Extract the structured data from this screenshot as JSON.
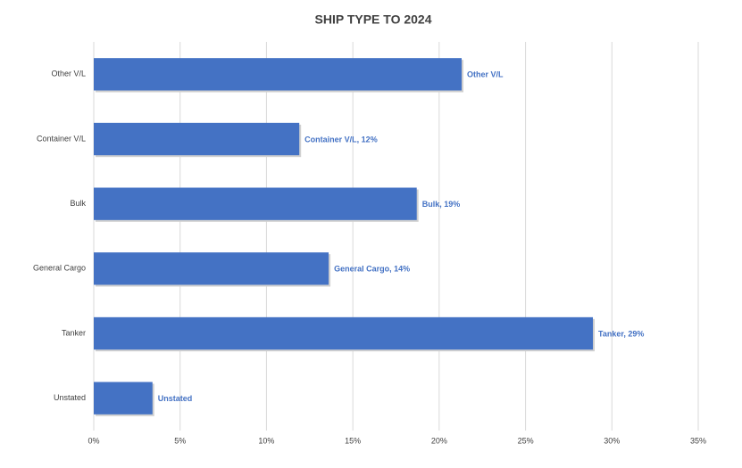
{
  "chart_data": {
    "type": "hbar",
    "title": "SHIP TYPE TO 2024",
    "categories": [
      "Other V/L",
      "Container V/L",
      "Bulk",
      "General Cargo",
      "Tanker",
      "Unstated"
    ],
    "values": [
      21.3,
      11.9,
      18.7,
      13.6,
      28.9,
      3.4
    ],
    "value_labels": [
      "Other V/L",
      "Container V/L, 12%",
      "Bulk, 19%",
      "General Cargo, 14%",
      "Tanker, 29%",
      "Unstated"
    ],
    "color": "#4472c4",
    "label_color": "#4472c4",
    "xlim": [
      0,
      35
    ],
    "xticks": [
      {
        "value": 0,
        "label": "0%"
      },
      {
        "value": 5,
        "label": "5%"
      },
      {
        "value": 10,
        "label": "10%"
      },
      {
        "value": 15,
        "label": "15%"
      },
      {
        "value": 20,
        "label": "20%"
      },
      {
        "value": 25,
        "label": "25%"
      },
      {
        "value": 30,
        "label": "30%"
      },
      {
        "value": 35,
        "label": "35%"
      }
    ],
    "grid": true
  }
}
